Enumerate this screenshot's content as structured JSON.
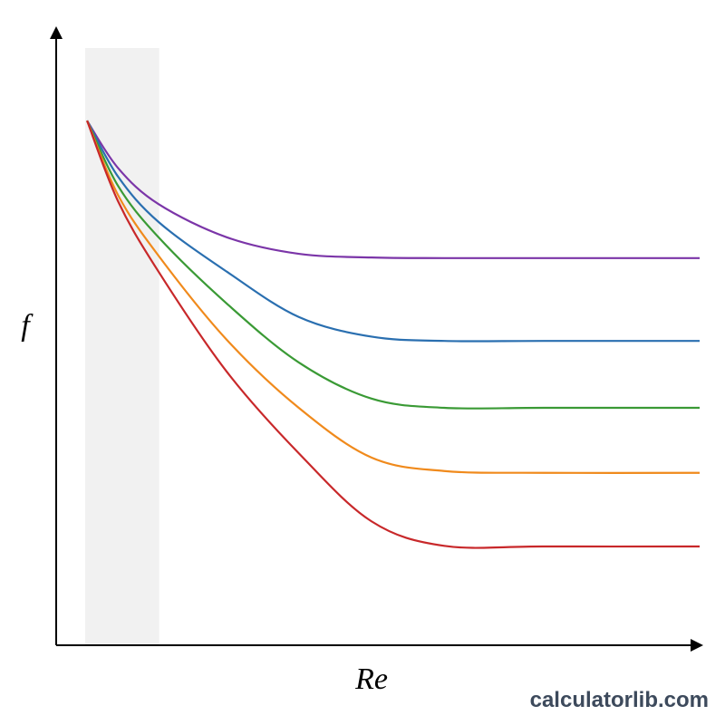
{
  "chart_data": {
    "type": "line",
    "x_label": "Re",
    "y_label": "f",
    "watermark": "calculatorlib.com",
    "xlim": [
      0,
      100
    ],
    "ylim": [
      0,
      100
    ],
    "shaded_region": [
      4.5,
      16.0
    ],
    "x": [
      4.8,
      9.6,
      15.9,
      26.5,
      37.7,
      49.0,
      60.3,
      75.8,
      100
    ],
    "series": [
      {
        "color": "#7b35a8",
        "values": [
          85.5,
          77.8,
          71.9,
          66.5,
          63.8,
          63.2,
          63.1,
          63.1,
          63.1
        ]
      },
      {
        "color": "#2a6fb0",
        "values": [
          85.5,
          76.4,
          69.0,
          60.9,
          53.5,
          50.3,
          49.6,
          49.6,
          49.6
        ]
      },
      {
        "color": "#3a9a35",
        "values": [
          85.5,
          74.9,
          66.5,
          55.7,
          46.1,
          40.2,
          38.7,
          38.7,
          38.7
        ]
      },
      {
        "color": "#f08a1c",
        "values": [
          85.5,
          73.4,
          63.5,
          49.8,
          38.7,
          30.6,
          28.4,
          28.1,
          28.1
        ]
      },
      {
        "color": "#c8282a",
        "values": [
          85.5,
          72.4,
          60.9,
          44.6,
          31.3,
          20.2,
          16.2,
          16.1,
          16.1
        ]
      }
    ]
  }
}
